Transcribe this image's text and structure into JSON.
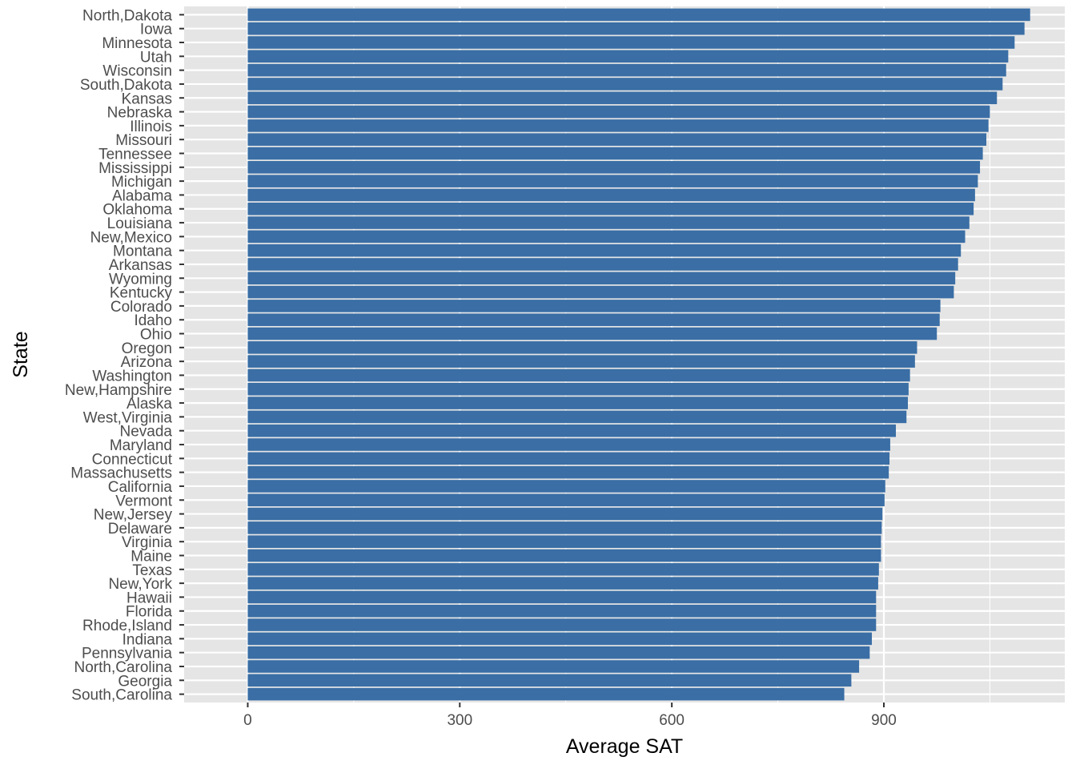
{
  "chart_data": {
    "type": "bar",
    "orientation": "horizontal",
    "xlabel": "Average SAT",
    "ylabel": "State",
    "xlim": [
      -90,
      1156
    ],
    "xticks": [
      0,
      300,
      600,
      900
    ],
    "grid": true,
    "bar_color": "#3a6ea5",
    "panel_color": "#e5e5e5",
    "grid_color": "#ffffff",
    "categories": [
      "North,Dakota",
      "Iowa",
      "Minnesota",
      "Utah",
      "Wisconsin",
      "South,Dakota",
      "Kansas",
      "Nebraska",
      "Illinois",
      "Missouri",
      "Tennessee",
      "Mississippi",
      "Michigan",
      "Alabama",
      "Oklahoma",
      "Louisiana",
      "New,Mexico",
      "Montana",
      "Arkansas",
      "Wyoming",
      "Kentucky",
      "Colorado",
      "Idaho",
      "Ohio",
      "Oregon",
      "Arizona",
      "Washington",
      "New,Hampshire",
      "Alaska",
      "West,Virginia",
      "Nevada",
      "Maryland",
      "Connecticut",
      "Massachusetts",
      "California",
      "Vermont",
      "New,Jersey",
      "Delaware",
      "Virginia",
      "Maine",
      "Texas",
      "New,York",
      "Hawaii",
      "Florida",
      "Rhode,Island",
      "Indiana",
      "Pennsylvania",
      "North,Carolina",
      "Georgia",
      "South,Carolina"
    ],
    "values": [
      1107,
      1099,
      1085,
      1076,
      1073,
      1068,
      1060,
      1050,
      1048,
      1045,
      1040,
      1036,
      1033,
      1029,
      1027,
      1021,
      1015,
      1009,
      1005,
      1001,
      999,
      980,
      979,
      975,
      947,
      944,
      937,
      935,
      934,
      932,
      917,
      909,
      908,
      907,
      902,
      901,
      898,
      897,
      896,
      896,
      893,
      892,
      889,
      889,
      889,
      883,
      880,
      865,
      854,
      844
    ]
  }
}
